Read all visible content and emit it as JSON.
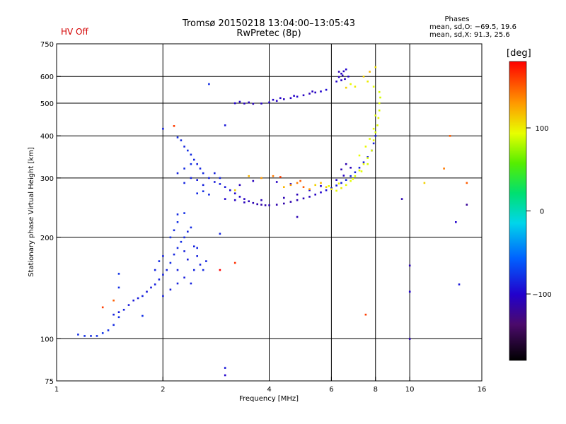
{
  "header": {
    "status_label": "HV Off",
    "title": "Tromsø 20150218 13:04:00–13:05:43",
    "subtitle": "RwPretec (8p)",
    "stats_heading": "Phases",
    "stats_o": "mean, sd,O: −69.5, 19.6",
    "stats_x": "mean, sd,X:  91.3, 25.6"
  },
  "colors": {
    "status_label": "#d40000",
    "grid": "#000000",
    "axis": "#000000"
  },
  "colorbar": {
    "unit_label": "[deg]",
    "range": [
      -180,
      180
    ],
    "ticks": [
      100,
      0,
      -100
    ],
    "tick_labels": [
      "100",
      "0",
      "−100"
    ],
    "colormap": "spectral: black → purple → blue → cyan → green → yellow → orange → red"
  },
  "chart_data": {
    "type": "scatter",
    "xlabel": "Frequency [MHz]",
    "ylabel": "Stationary phase Virtual Height [km]",
    "xscale": "log",
    "yscale": "log",
    "xlim": [
      1,
      16
    ],
    "ylim": [
      75,
      750
    ],
    "grid": true,
    "x_ticks": [
      1,
      2,
      4,
      6,
      8,
      10,
      16
    ],
    "x_tick_labels": [
      "1",
      "2",
      "4",
      "6",
      "8",
      "10",
      "16"
    ],
    "y_ticks": [
      75,
      100,
      200,
      300,
      400,
      500,
      600,
      750
    ],
    "y_tick_labels": [
      "75",
      "100",
      "200",
      "300",
      "400",
      "500",
      "600",
      "750"
    ],
    "x_grid": [
      2,
      4,
      6,
      8,
      10
    ],
    "y_grid": [
      100,
      200,
      300,
      400,
      500,
      600
    ],
    "series": [
      {
        "points": [
          [
            1.15,
            103,
            -80
          ],
          [
            1.2,
            102,
            -80
          ],
          [
            1.25,
            102,
            -82
          ],
          [
            1.3,
            102,
            -80
          ],
          [
            1.35,
            104,
            -78
          ],
          [
            1.4,
            106,
            -80
          ],
          [
            1.45,
            110,
            -82
          ],
          [
            1.5,
            116,
            -80
          ],
          [
            1.55,
            122,
            -85
          ],
          [
            1.6,
            126,
            -88
          ],
          [
            1.65,
            130,
            -90
          ],
          [
            1.7,
            132,
            -88
          ],
          [
            1.75,
            134,
            -86
          ],
          [
            1.8,
            138,
            -90
          ],
          [
            1.85,
            142,
            -88
          ],
          [
            1.9,
            145,
            -86
          ],
          [
            1.95,
            150,
            -85
          ],
          [
            2.0,
            155,
            -86
          ],
          [
            2.05,
            160,
            -84
          ],
          [
            2.1,
            168,
            -82
          ],
          [
            2.15,
            178,
            -84
          ],
          [
            2.2,
            186,
            -82
          ],
          [
            2.25,
            194,
            -80
          ],
          [
            2.3,
            200,
            -82
          ],
          [
            2.35,
            208,
            -84
          ],
          [
            2.4,
            214,
            -82
          ],
          [
            2.45,
            188,
            -85
          ],
          [
            2.5,
            176,
            -86
          ],
          [
            2.55,
            166,
            -85
          ],
          [
            2.6,
            160,
            -82
          ],
          [
            2.65,
            170,
            -84
          ],
          [
            2.1,
            200,
            -80
          ],
          [
            2.15,
            210,
            -82
          ],
          [
            2.2,
            222,
            -80
          ],
          [
            2.2,
            160,
            -86
          ],
          [
            2.3,
            152,
            -88
          ],
          [
            2.4,
            146,
            -85
          ],
          [
            2.5,
            186,
            -84
          ],
          [
            2.3,
            182,
            -86
          ],
          [
            2.35,
            172,
            -88
          ],
          [
            2.45,
            160,
            -84
          ],
          [
            2.2,
            146,
            -86
          ],
          [
            2.1,
            140,
            -88
          ],
          [
            2.0,
            134,
            -86
          ],
          [
            1.9,
            160,
            -84
          ],
          [
            1.95,
            170,
            -82
          ],
          [
            2.0,
            176,
            -85
          ],
          [
            2.3,
            236,
            -80
          ],
          [
            2.2,
            234,
            -82
          ],
          [
            1.5,
            142,
            -80
          ],
          [
            1.5,
            156,
            -78
          ],
          [
            1.45,
            118,
            -86
          ],
          [
            1.5,
            120,
            -88
          ]
        ]
      },
      {
        "points": [
          [
            2.2,
            396,
            -80
          ],
          [
            2.25,
            388,
            -82
          ],
          [
            2.3,
            372,
            -84
          ],
          [
            2.35,
            362,
            -80
          ],
          [
            2.4,
            352,
            -82
          ],
          [
            2.45,
            340,
            -84
          ],
          [
            2.5,
            330,
            -86
          ],
          [
            2.55,
            320,
            -84
          ],
          [
            2.6,
            310,
            -82
          ],
          [
            2.7,
            300,
            -86
          ],
          [
            2.8,
            292,
            -88
          ],
          [
            2.9,
            288,
            -86
          ],
          [
            3.0,
            282,
            -90
          ],
          [
            3.1,
            276,
            -94
          ],
          [
            3.2,
            270,
            -98
          ],
          [
            3.3,
            264,
            -100
          ],
          [
            3.4,
            260,
            -104
          ],
          [
            3.5,
            256,
            -108
          ],
          [
            3.6,
            253,
            -110
          ],
          [
            3.7,
            251,
            -112
          ],
          [
            3.8,
            250,
            -114
          ],
          [
            3.9,
            249,
            -112
          ],
          [
            4.0,
            249,
            -110
          ],
          [
            4.2,
            250,
            -112
          ],
          [
            4.4,
            252,
            -114
          ],
          [
            4.6,
            255,
            -112
          ],
          [
            4.8,
            258,
            -110
          ],
          [
            5.0,
            261,
            -108
          ],
          [
            5.2,
            264,
            -106
          ],
          [
            5.4,
            268,
            -104
          ],
          [
            5.6,
            272,
            -100
          ],
          [
            5.8,
            276,
            -96
          ],
          [
            6.0,
            280,
            -92
          ],
          [
            6.2,
            285,
            -88
          ],
          [
            6.4,
            290,
            -86
          ],
          [
            6.6,
            296,
            -84
          ],
          [
            6.8,
            304,
            -82
          ],
          [
            7.0,
            312,
            -84
          ],
          [
            7.2,
            322,
            -86
          ],
          [
            7.4,
            334,
            -88
          ],
          [
            7.6,
            346,
            -90
          ],
          [
            7.8,
            362,
            -92
          ],
          [
            7.9,
            380,
            -88
          ],
          [
            8.0,
            400,
            -86
          ],
          [
            2.3,
            290,
            -84
          ],
          [
            2.4,
            300,
            -86
          ],
          [
            2.5,
            296,
            -88
          ],
          [
            2.6,
            286,
            -86
          ],
          [
            2.2,
            310,
            -84
          ],
          [
            2.3,
            320,
            -82
          ],
          [
            2.4,
            330,
            -80
          ],
          [
            3.0,
            260,
            -100
          ],
          [
            3.2,
            258,
            -104
          ],
          [
            3.4,
            254,
            -106
          ],
          [
            3.8,
            258,
            -108
          ],
          [
            4.4,
            262,
            -110
          ],
          [
            4.8,
            268,
            -108
          ],
          [
            5.2,
            276,
            -104
          ],
          [
            5.6,
            284,
            -100
          ],
          [
            6.2,
            296,
            -100
          ],
          [
            6.4,
            318,
            -110
          ],
          [
            6.6,
            330,
            -112
          ],
          [
            6.8,
            322,
            -108
          ],
          [
            6.5,
            305,
            -104
          ],
          [
            4.6,
            288,
            -100
          ],
          [
            4.2,
            292,
            -104
          ],
          [
            3.6,
            294,
            -106
          ],
          [
            3.3,
            286,
            -108
          ],
          [
            2.7,
            268,
            -82
          ],
          [
            2.5,
            270,
            -82
          ],
          [
            2.6,
            274,
            -80
          ],
          [
            2.9,
            300,
            -84
          ],
          [
            2.8,
            310,
            -86
          ]
        ]
      },
      {
        "points": [
          [
            3.2,
            500,
            -100
          ],
          [
            3.4,
            499,
            -104
          ],
          [
            3.6,
            498,
            -108
          ],
          [
            3.8,
            499,
            -104
          ],
          [
            4.0,
            503,
            -100
          ],
          [
            4.2,
            508,
            -104
          ],
          [
            4.4,
            514,
            -108
          ],
          [
            4.6,
            518,
            -104
          ],
          [
            4.8,
            523,
            -100
          ],
          [
            5.0,
            528,
            -104
          ],
          [
            5.2,
            534,
            -108
          ],
          [
            5.4,
            538,
            -104
          ],
          [
            5.6,
            542,
            -100
          ],
          [
            5.8,
            548,
            -96
          ],
          [
            3.3,
            505,
            -102
          ],
          [
            3.5,
            503,
            -106
          ],
          [
            4.1,
            512,
            -102
          ],
          [
            4.3,
            518,
            -100
          ],
          [
            4.7,
            526,
            -102
          ],
          [
            5.3,
            542,
            -106
          ]
        ]
      },
      {
        "points": [
          [
            6.2,
            580,
            -100
          ],
          [
            6.3,
            598,
            -104
          ],
          [
            6.4,
            612,
            -106
          ],
          [
            6.5,
            622,
            -104
          ],
          [
            6.6,
            630,
            -100
          ],
          [
            6.3,
            620,
            -110
          ],
          [
            6.45,
            604,
            -108
          ],
          [
            6.55,
            590,
            -106
          ],
          [
            6.7,
            600,
            -102
          ],
          [
            6.4,
            585,
            -104
          ]
        ]
      },
      {
        "points": [
          [
            4.4,
            282,
            120
          ],
          [
            4.6,
            286,
            130
          ],
          [
            4.8,
            290,
            140
          ],
          [
            5.0,
            282,
            150
          ],
          [
            5.2,
            278,
            130
          ],
          [
            5.4,
            286,
            110
          ],
          [
            5.6,
            290,
            120
          ],
          [
            5.8,
            282,
            110
          ],
          [
            6.0,
            278,
            100
          ],
          [
            6.2,
            275,
            95
          ],
          [
            6.4,
            280,
            100
          ],
          [
            6.6,
            286,
            95
          ],
          [
            6.8,
            294,
            92
          ],
          [
            7.0,
            304,
            90
          ],
          [
            7.2,
            316,
            92
          ],
          [
            7.4,
            330,
            95
          ],
          [
            7.6,
            344,
            90
          ],
          [
            7.8,
            362,
            92
          ],
          [
            7.9,
            388,
            95
          ],
          [
            8.0,
            410,
            90
          ],
          [
            8.1,
            430,
            92
          ],
          [
            8.15,
            452,
            95
          ],
          [
            8.2,
            476,
            90
          ],
          [
            8.2,
            500,
            92
          ],
          [
            8.25,
            520,
            88
          ],
          [
            8.2,
            540,
            90
          ],
          [
            7.9,
            560,
            92
          ],
          [
            7.6,
            580,
            100
          ],
          [
            7.4,
            600,
            110
          ],
          [
            7.7,
            620,
            120
          ],
          [
            8.0,
            640,
            105
          ],
          [
            7.0,
            560,
            100
          ],
          [
            6.8,
            570,
            95
          ],
          [
            6.6,
            556,
            110
          ],
          [
            7.2,
            350,
            94
          ],
          [
            7.5,
            372,
            96
          ],
          [
            7.7,
            392,
            92
          ],
          [
            7.9,
            420,
            94
          ],
          [
            8.0,
            460,
            92
          ],
          [
            7.6,
            330,
            90
          ],
          [
            7.3,
            314,
            92
          ],
          [
            6.9,
            298,
            96
          ],
          [
            5.9,
            284,
            95
          ],
          [
            6.3,
            289,
            98
          ],
          [
            3.8,
            300,
            130
          ],
          [
            3.5,
            304,
            120
          ],
          [
            4.1,
            304,
            140
          ],
          [
            4.3,
            302,
            160
          ],
          [
            3.2,
            276,
            110
          ],
          [
            4.9,
            294,
            150
          ]
        ]
      },
      {
        "points": [
          [
            1.35,
            124,
            160
          ],
          [
            1.45,
            130,
            150
          ],
          [
            7.5,
            118,
            160
          ],
          [
            12.5,
            320,
            140
          ],
          [
            13.0,
            400,
            150
          ],
          [
            11.0,
            290,
            110
          ],
          [
            14.5,
            290,
            150
          ],
          [
            14.5,
            250,
            -120
          ],
          [
            13.5,
            222,
            -100
          ],
          [
            13.8,
            145,
            -90
          ],
          [
            10.0,
            165,
            -110
          ],
          [
            10.0,
            138,
            -100
          ],
          [
            10.0,
            100,
            -110
          ],
          [
            9.5,
            260,
            -110
          ],
          [
            3.0,
            82,
            -90
          ],
          [
            3.0,
            78,
            -100
          ],
          [
            2.7,
            570,
            -80
          ],
          [
            3.0,
            430,
            -90
          ],
          [
            2.9,
            205,
            -84
          ],
          [
            2.9,
            160,
            180
          ],
          [
            3.2,
            168,
            165
          ],
          [
            4.8,
            230,
            -110
          ],
          [
            2.0,
            420,
            -85
          ],
          [
            2.15,
            428,
            160
          ],
          [
            1.75,
            117,
            -80
          ]
        ]
      }
    ]
  }
}
